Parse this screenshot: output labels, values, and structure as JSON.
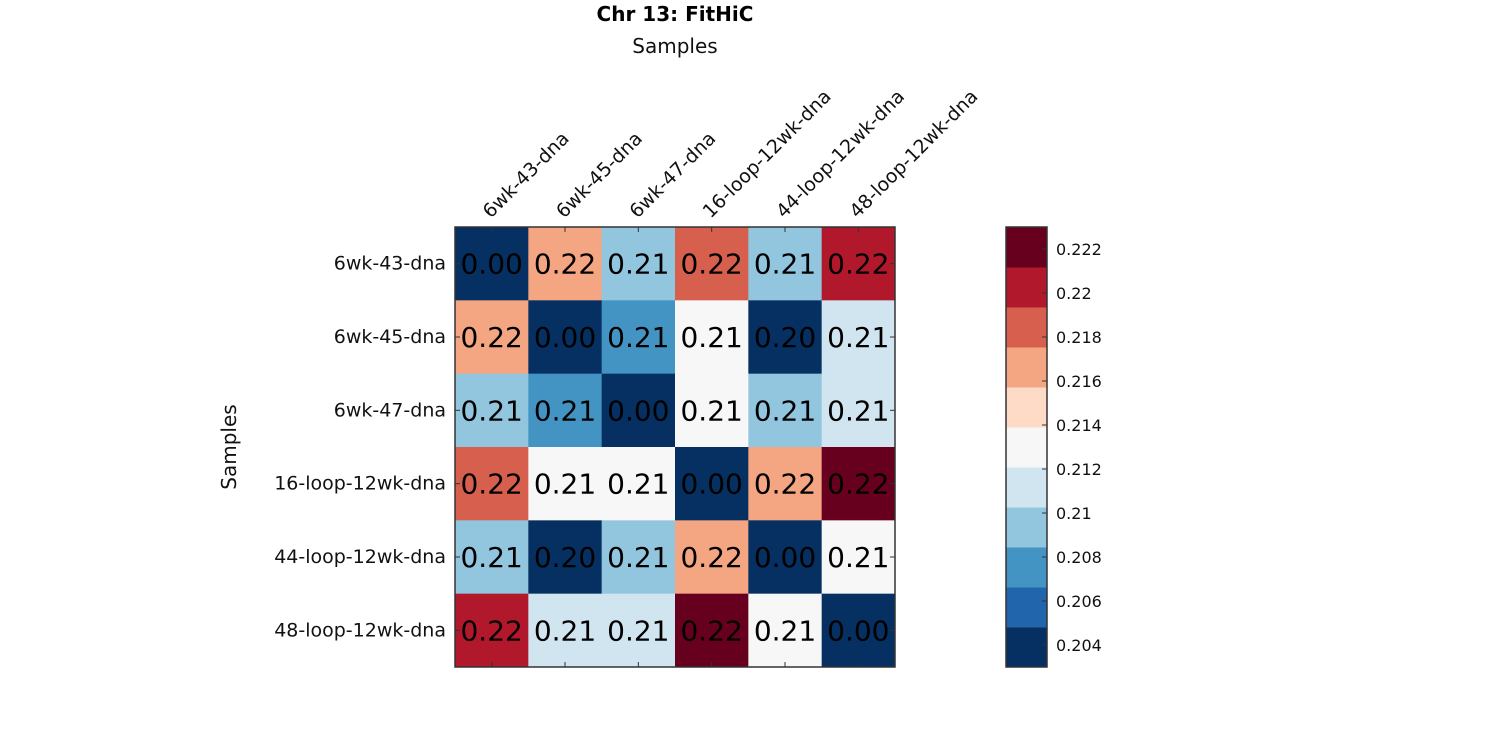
{
  "chart_data": {
    "type": "heatmap",
    "title": "Chr 13: FitHiC",
    "xlabel": "Samples",
    "ylabel": "Samples",
    "x_categories": [
      "6wk-43-dna",
      "6wk-45-dna",
      "6wk-47-dna",
      "16-loop-12wk-dna",
      "44-loop-12wk-dna",
      "48-loop-12wk-dna"
    ],
    "y_categories": [
      "6wk-43-dna",
      "6wk-45-dna",
      "6wk-47-dna",
      "16-loop-12wk-dna",
      "44-loop-12wk-dna",
      "48-loop-12wk-dna"
    ],
    "values": [
      [
        0.0,
        0.217,
        0.21,
        0.219,
        0.209,
        0.221
      ],
      [
        0.217,
        0.0,
        0.207,
        0.213,
        0.204,
        0.212
      ],
      [
        0.21,
        0.207,
        0.0,
        0.213,
        0.21,
        0.212
      ],
      [
        0.219,
        0.213,
        0.213,
        0.0,
        0.217,
        0.223
      ],
      [
        0.209,
        0.204,
        0.21,
        0.217,
        0.0,
        0.213
      ],
      [
        0.221,
        0.212,
        0.212,
        0.223,
        0.213,
        0.0
      ]
    ],
    "cell_labels": [
      [
        "0.00",
        "0.22",
        "0.21",
        "0.22",
        "0.21",
        "0.22"
      ],
      [
        "0.22",
        "0.00",
        "0.21",
        "0.21",
        "0.20",
        "0.21"
      ],
      [
        "0.21",
        "0.21",
        "0.00",
        "0.21",
        "0.21",
        "0.21"
      ],
      [
        "0.22",
        "0.21",
        "0.21",
        "0.00",
        "0.22",
        "0.22"
      ],
      [
        "0.21",
        "0.20",
        "0.21",
        "0.22",
        "0.00",
        "0.21"
      ],
      [
        "0.22",
        "0.21",
        "0.21",
        "0.22",
        "0.21",
        "0.00"
      ]
    ],
    "colorbar": {
      "range": [
        0.203,
        0.223
      ],
      "ticks": [
        0.204,
        0.206,
        0.208,
        0.21,
        0.212,
        0.214,
        0.216,
        0.218,
        0.22,
        0.222
      ],
      "tick_labels": [
        "0.204",
        "0.206",
        "0.208",
        "0.21",
        "0.212",
        "0.214",
        "0.216",
        "0.218",
        "0.22",
        "0.222"
      ],
      "colors": [
        "#053061",
        "#2166ac",
        "#4393c3",
        "#92c5de",
        "#d1e5f0",
        "#f7f7f7",
        "#fddbc7",
        "#f4a582",
        "#d6604d",
        "#b2182b",
        "#67001f"
      ]
    },
    "grid": false,
    "legend": "right colorbar"
  }
}
